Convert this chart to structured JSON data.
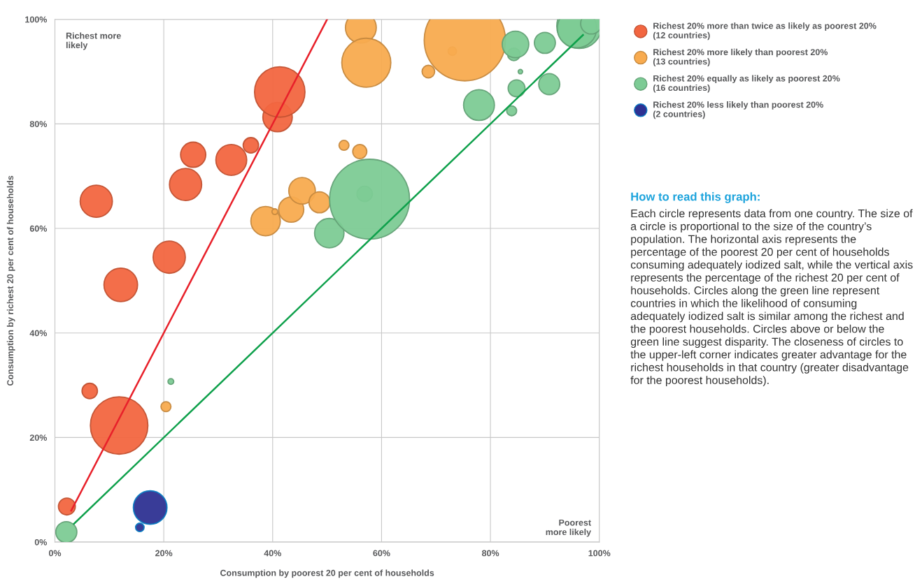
{
  "chart_data": {
    "type": "bubble",
    "xlabel": "Consumption by poorest 20 per cent of households",
    "ylabel": "Consumption by richest 20 per cent of households",
    "xlim": [
      0,
      100
    ],
    "ylim": [
      0,
      100
    ],
    "xticks": [
      {
        "value": 0,
        "label": "0%"
      },
      {
        "value": 20,
        "label": "20%"
      },
      {
        "value": 40,
        "label": "40%"
      },
      {
        "value": 60,
        "label": "60%"
      },
      {
        "value": 80,
        "label": "80%"
      },
      {
        "value": 100,
        "label": "100%"
      }
    ],
    "yticks": [
      {
        "value": 0,
        "label": "0%"
      },
      {
        "value": 20,
        "label": "20%"
      },
      {
        "value": 40,
        "label": "40%"
      },
      {
        "value": 60,
        "label": "60%"
      },
      {
        "value": 80,
        "label": "80%"
      },
      {
        "value": 100,
        "label": "100%"
      }
    ],
    "grid": true,
    "legend": "right",
    "marker": "circle",
    "series": [
      {
        "type": "line",
        "marker": "none",
        "color": "#e8202a",
        "x": [
          3,
          50
        ],
        "values": [
          6,
          100
        ]
      },
      {
        "type": "line",
        "marker": "none",
        "color": "#0ea04b",
        "x": [
          3.5,
          97
        ],
        "values": [
          3.5,
          97
        ]
      },
      {
        "name": "Richest 20% more than twice as likely as poorest 20%\n(12 countries)",
        "color": "#f26640",
        "x": [
          2.2,
          6.4,
          11.8,
          12.1,
          7.6,
          21.0,
          24.0,
          25.4,
          32.4,
          36.0,
          40.9,
          41.3
        ],
        "values": [
          6.8,
          28.9,
          22.3,
          49.2,
          65.2,
          54.5,
          68.4,
          74.1,
          73.1,
          75.9,
          81.3,
          86.1
        ],
        "sizes": [
          0.043,
          0.036,
          0.5,
          0.171,
          0.157,
          0.157,
          0.157,
          0.096,
          0.144,
          0.036,
          0.131,
          0.385
        ]
      },
      {
        "name": "Richest 20% more likely than poorest 20%\n(13 countries)",
        "color": "#f8ab4f",
        "x": [
          20.4,
          38.7,
          40.4,
          43.4,
          45.4,
          48.6,
          53.1,
          56.0,
          56.2,
          57.2,
          68.6,
          73.0,
          75.3
        ],
        "values": [
          25.9,
          61.4,
          63.2,
          63.6,
          67.2,
          65.0,
          75.9,
          74.7,
          98.4,
          91.7,
          90.0,
          93.9,
          96.0
        ],
        "sizes": [
          0.015,
          0.131,
          0.005,
          0.096,
          0.107,
          0.067,
          0.015,
          0.03,
          0.144,
          0.364,
          0.024,
          0.011,
          1
        ]
      },
      {
        "name": "Richest 20% equally as likely as poorest 20%\n(16 countries)",
        "color": "#7dcb95",
        "x": [
          2.1,
          21.3,
          50.4,
          56.9,
          57.8,
          77.9,
          83.9,
          84.8,
          84.3,
          84.6,
          85.5,
          90.0,
          90.8,
          96.3,
          95.9,
          98.5
        ],
        "values": [
          1.9,
          30.7,
          59.1,
          66.6,
          65.6,
          83.6,
          82.5,
          86.8,
          93.3,
          95.2,
          90.0,
          95.5,
          87.6,
          98.7,
          98.3,
          99.2
        ],
        "sizes": [
          0.067,
          0.005,
          0.131,
          0.036,
          0.967,
          0.144,
          0.015,
          0.043,
          0.024,
          0.107,
          0.003,
          0.067,
          0.067,
          0.304,
          0.233,
          0.067
        ]
      },
      {
        "name": "Richest 20% less likely than poorest 20%\n(2 countries)",
        "color": "#2e3192",
        "x": [
          17.5,
          15.6
        ],
        "values": [
          6.6,
          2.8
        ],
        "sizes": [
          0.171,
          0.011
        ]
      }
    ],
    "annotations": [
      "Richest more\nlikely",
      "Poorest\nmore likely",
      "How to read this graph:",
      "Each circle represents data from one country. The size of a circle is proportional to the size of the country’s population. The horizontal axis represents the percentage of the poorest 20 per cent of households consuming adequately iodized salt, while the vertical axis represents the percentage of the richest 20 per cent of households. Circles along the green line represent countries in which the likelihood of consuming adequately iodized salt is similar among the richest and the poorest households. Circles above or below the green line suggest disparity. The closeness of circles to the upper-left corner indicates greater advantage for the richest households in that country (greater disadvantage for the poorest households)."
    ]
  }
}
